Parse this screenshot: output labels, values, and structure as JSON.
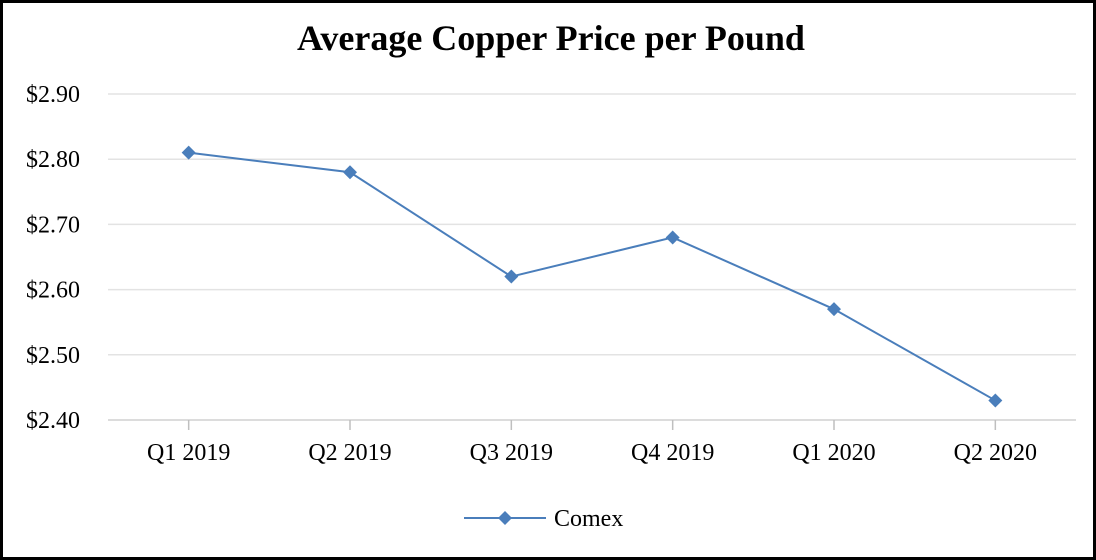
{
  "chart_data": {
    "type": "line",
    "title": "Average Copper Price per Pound",
    "categories": [
      "Q1 2019",
      "Q2 2019",
      "Q3 2019",
      "Q4 2019",
      "Q1 2020",
      "Q2 2020"
    ],
    "series": [
      {
        "name": "Comex",
        "values": [
          2.81,
          2.78,
          2.62,
          2.68,
          2.57,
          2.43
        ],
        "color": "#4A7EBB"
      }
    ],
    "yticks": [
      "$2.40",
      "$2.50",
      "$2.60",
      "$2.70",
      "$2.80",
      "$2.90"
    ],
    "ylim": [
      2.4,
      2.9
    ],
    "xlabel": "",
    "ylabel": "",
    "grid": true,
    "legend": "bottom-center"
  }
}
